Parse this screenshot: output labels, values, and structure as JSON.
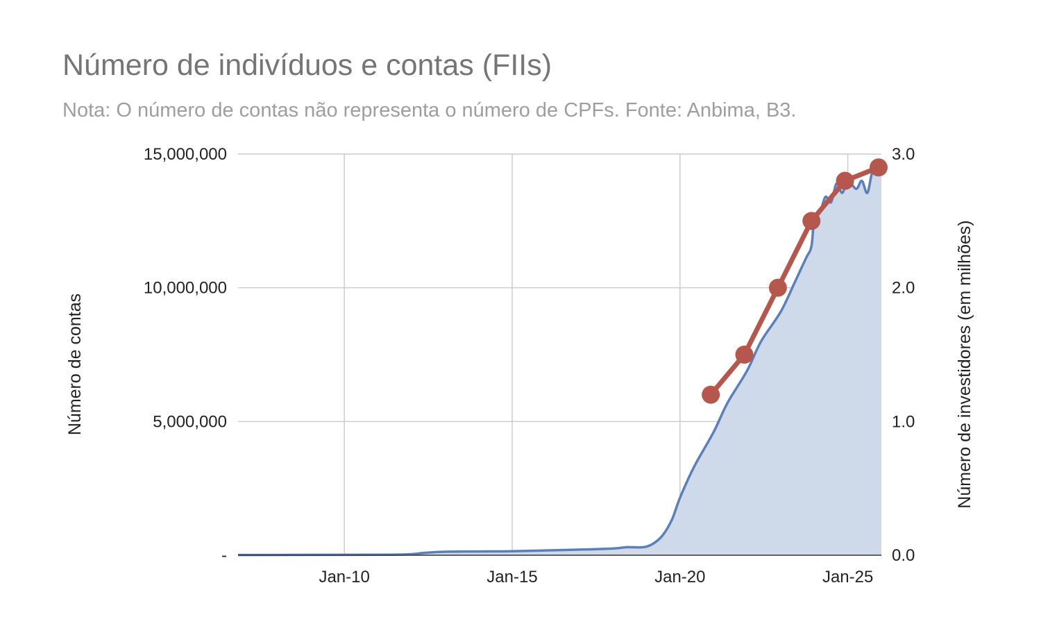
{
  "chart_data": {
    "type": "line",
    "title": "Número de indivíduos e contas (FIIs)",
    "subtitle": "Nota: O número de contas não representa o número de CPFs. Fonte: Anbima, B3.",
    "ylabel_left": "Número de contas",
    "ylabel_right": "Número de investidores (em milhões)",
    "x_range": [
      "2006-11",
      "2026-01"
    ],
    "x_ticks": [
      {
        "date": "2010-01",
        "label": "Jan-10"
      },
      {
        "date": "2015-01",
        "label": "Jan-15"
      },
      {
        "date": "2020-01",
        "label": "Jan-20"
      },
      {
        "date": "2025-01",
        "label": "Jan-25"
      }
    ],
    "ylim_left": [
      0,
      15000000
    ],
    "ylim_right": [
      0,
      3.0
    ],
    "y_ticks_left": [
      {
        "value": 0,
        "label": "-"
      },
      {
        "value": 5000000,
        "label": "5,000,000"
      },
      {
        "value": 10000000,
        "label": "10,000,000"
      },
      {
        "value": 15000000,
        "label": "15,000,000"
      }
    ],
    "y_ticks_right": [
      {
        "value": 0,
        "label": "0.0"
      },
      {
        "value": 1.0,
        "label": "1.0"
      },
      {
        "value": 2.0,
        "label": "2.0"
      },
      {
        "value": 3.0,
        "label": "3.0"
      }
    ],
    "grid": true,
    "series": [
      {
        "type": "area",
        "axis": "left",
        "color": "#5b7fb9",
        "fill": "#ced9ea",
        "points": [
          {
            "date": "2006-11",
            "value": 10000
          },
          {
            "date": "2010-01",
            "value": 15000
          },
          {
            "date": "2011-06",
            "value": 20000
          },
          {
            "date": "2012-01",
            "value": 40000
          },
          {
            "date": "2012-06",
            "value": 90000
          },
          {
            "date": "2013-01",
            "value": 130000
          },
          {
            "date": "2014-01",
            "value": 140000
          },
          {
            "date": "2015-01",
            "value": 150000
          },
          {
            "date": "2016-01",
            "value": 180000
          },
          {
            "date": "2017-01",
            "value": 210000
          },
          {
            "date": "2018-01",
            "value": 250000
          },
          {
            "date": "2018-06",
            "value": 300000
          },
          {
            "date": "2019-01",
            "value": 320000
          },
          {
            "date": "2019-06",
            "value": 650000
          },
          {
            "date": "2019-10",
            "value": 1300000
          },
          {
            "date": "2020-01",
            "value": 2150000
          },
          {
            "date": "2020-06",
            "value": 3300000
          },
          {
            "date": "2021-01",
            "value": 4600000
          },
          {
            "date": "2021-06",
            "value": 5700000
          },
          {
            "date": "2022-01",
            "value": 6900000
          },
          {
            "date": "2022-06",
            "value": 8000000
          },
          {
            "date": "2023-01",
            "value": 9100000
          },
          {
            "date": "2023-06",
            "value": 10200000
          },
          {
            "date": "2023-10",
            "value": 11100000
          },
          {
            "date": "2023-12",
            "value": 11550000
          },
          {
            "date": "2024-01",
            "value": 12600000
          },
          {
            "date": "2024-03",
            "value": 12800000
          },
          {
            "date": "2024-05",
            "value": 13400000
          },
          {
            "date": "2024-07",
            "value": 13200000
          },
          {
            "date": "2024-09",
            "value": 13900000
          },
          {
            "date": "2024-11",
            "value": 13550000
          },
          {
            "date": "2025-01",
            "value": 14000000
          },
          {
            "date": "2025-04",
            "value": 13700000
          },
          {
            "date": "2025-06",
            "value": 14000000
          },
          {
            "date": "2025-08",
            "value": 13550000
          },
          {
            "date": "2025-10",
            "value": 14400000
          },
          {
            "date": "2026-01",
            "value": 14500000
          }
        ]
      },
      {
        "type": "line",
        "axis": "right",
        "color": "#b5574c",
        "markers": true,
        "points": [
          {
            "date": "2020-12",
            "value": 1.2
          },
          {
            "date": "2021-12",
            "value": 1.5
          },
          {
            "date": "2022-12",
            "value": 2.0
          },
          {
            "date": "2023-12",
            "value": 2.5
          },
          {
            "date": "2024-12",
            "value": 2.8
          },
          {
            "date": "2025-12",
            "value": 2.9
          }
        ]
      }
    ]
  }
}
